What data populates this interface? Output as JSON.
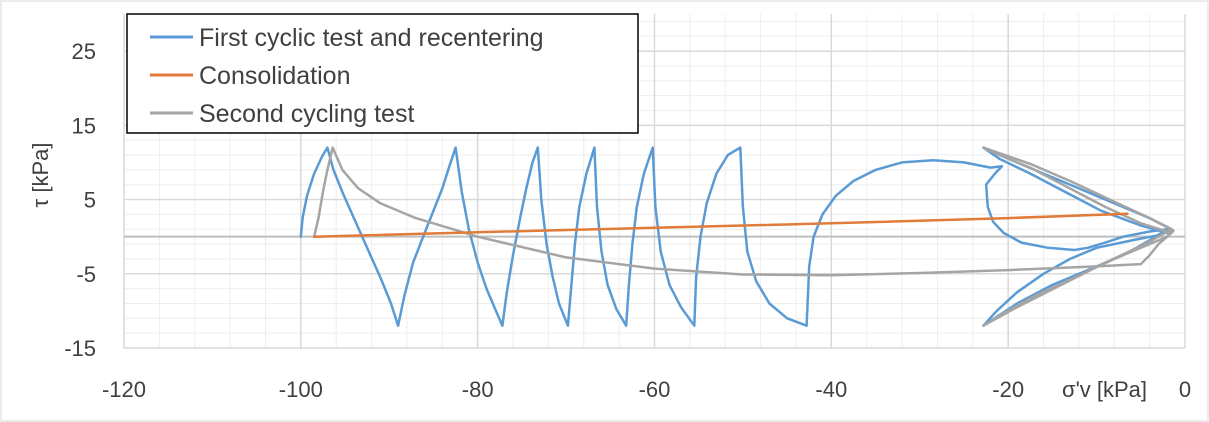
{
  "chart_data": {
    "type": "line",
    "xlabel": "σ'v [kPa]",
    "ylabel": "τ [kPa]",
    "xlim": [
      -120,
      0
    ],
    "ylim": [
      -15,
      30
    ],
    "x_ticks": [
      -120,
      -100,
      -80,
      -60,
      -40,
      -20,
      0
    ],
    "y_ticks": [
      -15,
      -5,
      5,
      15,
      25
    ],
    "grid": true,
    "legend_position": "top-left",
    "colors": {
      "first": "#5b9bd5",
      "consolidation": "#e07b39",
      "second": "#a5a5a5",
      "grid_major": "#d9d9d9",
      "grid_minor": "#eeeeee",
      "zero_axis": "#bfbfbf"
    },
    "series": [
      {
        "name": "First cyclic test and recentering",
        "points": [
          [
            -100,
            0
          ],
          [
            -99.8,
            2.5
          ],
          [
            -99.3,
            5.5
          ],
          [
            -98.5,
            8.5
          ],
          [
            -97.6,
            10.8
          ],
          [
            -97,
            12
          ],
          [
            -96.3,
            9
          ],
          [
            -95.3,
            6
          ],
          [
            -94,
            2.5
          ],
          [
            -92.5,
            -1.5
          ],
          [
            -91,
            -5.5
          ],
          [
            -89.8,
            -9
          ],
          [
            -89,
            -12
          ],
          [
            -88.3,
            -8
          ],
          [
            -87.3,
            -3.5
          ],
          [
            -86,
            0.5
          ],
          [
            -85,
            3.5
          ],
          [
            -84,
            6.5
          ],
          [
            -83.2,
            9.5
          ],
          [
            -82.5,
            12
          ],
          [
            -81.8,
            6
          ],
          [
            -81,
            1
          ],
          [
            -80,
            -3.5
          ],
          [
            -79,
            -7
          ],
          [
            -78,
            -9.8
          ],
          [
            -77.2,
            -12
          ],
          [
            -76.7,
            -7.5
          ],
          [
            -76,
            -2.5
          ],
          [
            -75.2,
            2.5
          ],
          [
            -74.5,
            6.5
          ],
          [
            -73.8,
            10
          ],
          [
            -73.2,
            12
          ],
          [
            -72.8,
            5
          ],
          [
            -72.2,
            -1
          ],
          [
            -71.5,
            -5.5
          ],
          [
            -70.8,
            -9
          ],
          [
            -69.8,
            -12
          ],
          [
            -69.4,
            -6.5
          ],
          [
            -69,
            -1
          ],
          [
            -68.5,
            4
          ],
          [
            -67.7,
            8.5
          ],
          [
            -66.8,
            12
          ],
          [
            -66.5,
            4
          ],
          [
            -66,
            -2
          ],
          [
            -65.3,
            -6.5
          ],
          [
            -64.3,
            -9.8
          ],
          [
            -63.2,
            -12
          ],
          [
            -62.9,
            -6.5
          ],
          [
            -62.5,
            -1
          ],
          [
            -62,
            4
          ],
          [
            -61.2,
            8.5
          ],
          [
            -60.2,
            12
          ],
          [
            -59.9,
            4
          ],
          [
            -59.3,
            -2
          ],
          [
            -58.3,
            -6.5
          ],
          [
            -57,
            -9.5
          ],
          [
            -55.5,
            -12
          ],
          [
            -55.3,
            -5.5
          ],
          [
            -54.8,
            0
          ],
          [
            -54.1,
            4.5
          ],
          [
            -53,
            8.5
          ],
          [
            -51.7,
            11
          ],
          [
            -50.3,
            12
          ],
          [
            -50,
            4
          ],
          [
            -49.5,
            -2
          ],
          [
            -48.5,
            -6
          ],
          [
            -47,
            -9
          ],
          [
            -45,
            -11
          ],
          [
            -42.8,
            -12
          ],
          [
            -42.5,
            -4
          ],
          [
            -42,
            0
          ],
          [
            -41,
            3
          ],
          [
            -39.5,
            5.5
          ],
          [
            -37.5,
            7.5
          ],
          [
            -35,
            9
          ],
          [
            -32,
            10
          ],
          [
            -28.5,
            10.3
          ],
          [
            -25,
            10
          ],
          [
            -22,
            9.3
          ],
          [
            -20.7,
            9.5
          ],
          [
            -21.5,
            8.5
          ],
          [
            -22.5,
            7
          ],
          [
            -22.3,
            4
          ],
          [
            -21.7,
            2
          ],
          [
            -20.5,
            0.5
          ],
          [
            -18.5,
            -0.8
          ],
          [
            -15.5,
            -1.5
          ],
          [
            -12.5,
            -1.8
          ],
          [
            -11,
            -1.5
          ],
          [
            -9,
            -0.8
          ],
          [
            -7,
            0
          ],
          [
            -4,
            0.7
          ],
          [
            -2,
            1
          ],
          [
            -4,
            -0.5
          ],
          [
            -7,
            -2.5
          ],
          [
            -11,
            -4.5
          ],
          [
            -15,
            -6.5
          ],
          [
            -19,
            -9
          ],
          [
            -22.8,
            -12
          ],
          [
            -21.3,
            -10
          ],
          [
            -19,
            -7.5
          ],
          [
            -16,
            -5
          ],
          [
            -13,
            -3
          ],
          [
            -10,
            -1.5
          ],
          [
            -6,
            -0.5
          ],
          [
            -3,
            0.2
          ],
          [
            -1.5,
            1
          ],
          [
            -4,
            2.5
          ],
          [
            -8,
            4.5
          ],
          [
            -12,
            6.5
          ],
          [
            -16,
            8.5
          ],
          [
            -20,
            10.5
          ],
          [
            -22.8,
            12
          ],
          [
            -21,
            10.5
          ],
          [
            -17.5,
            8.5
          ],
          [
            -13.5,
            6
          ],
          [
            -9.5,
            3.5
          ],
          [
            -5,
            1.5
          ],
          [
            -2,
            0.5
          ]
        ]
      },
      {
        "name": "Consolidation",
        "points": [
          [
            -98.5,
            0
          ],
          [
            -80,
            0.6
          ],
          [
            -60,
            1.2
          ],
          [
            -40,
            1.8
          ],
          [
            -20,
            2.5
          ],
          [
            -6.5,
            3.1
          ]
        ]
      },
      {
        "name": "Second cycling test",
        "points": [
          [
            -98.5,
            0
          ],
          [
            -98,
            2.5
          ],
          [
            -97.5,
            6
          ],
          [
            -97,
            9
          ],
          [
            -96.4,
            12
          ],
          [
            -95.3,
            9
          ],
          [
            -93.5,
            6.5
          ],
          [
            -91,
            4.5
          ],
          [
            -87,
            2.5
          ],
          [
            -80,
            0
          ],
          [
            -70,
            -2.8
          ],
          [
            -60,
            -4.3
          ],
          [
            -50,
            -5.1
          ],
          [
            -40,
            -5.2
          ],
          [
            -30,
            -4.9
          ],
          [
            -20,
            -4.5
          ],
          [
            -10,
            -4
          ],
          [
            -5,
            -3.7
          ],
          [
            -4,
            -2.5
          ],
          [
            -3,
            -1
          ],
          [
            -2,
            0
          ],
          [
            -1.5,
            1
          ],
          [
            -4.5,
            -1
          ],
          [
            -9,
            -3.5
          ],
          [
            -14,
            -6.5
          ],
          [
            -19,
            -9.5
          ],
          [
            -22.8,
            -12
          ],
          [
            -20.5,
            -10.3
          ],
          [
            -17,
            -8
          ],
          [
            -12.5,
            -5.5
          ],
          [
            -8,
            -3
          ],
          [
            -4,
            -1
          ],
          [
            -2,
            0
          ],
          [
            -1.3,
            0.8
          ],
          [
            -4,
            2.5
          ],
          [
            -8.5,
            5
          ],
          [
            -13,
            7.5
          ],
          [
            -17.5,
            9.8
          ],
          [
            -22.8,
            12
          ],
          [
            -21,
            11
          ],
          [
            -17.5,
            9.3
          ],
          [
            -13.5,
            6.8
          ],
          [
            -9,
            4
          ],
          [
            -5,
            1.8
          ],
          [
            -1.5,
            0.5
          ]
        ]
      }
    ]
  }
}
